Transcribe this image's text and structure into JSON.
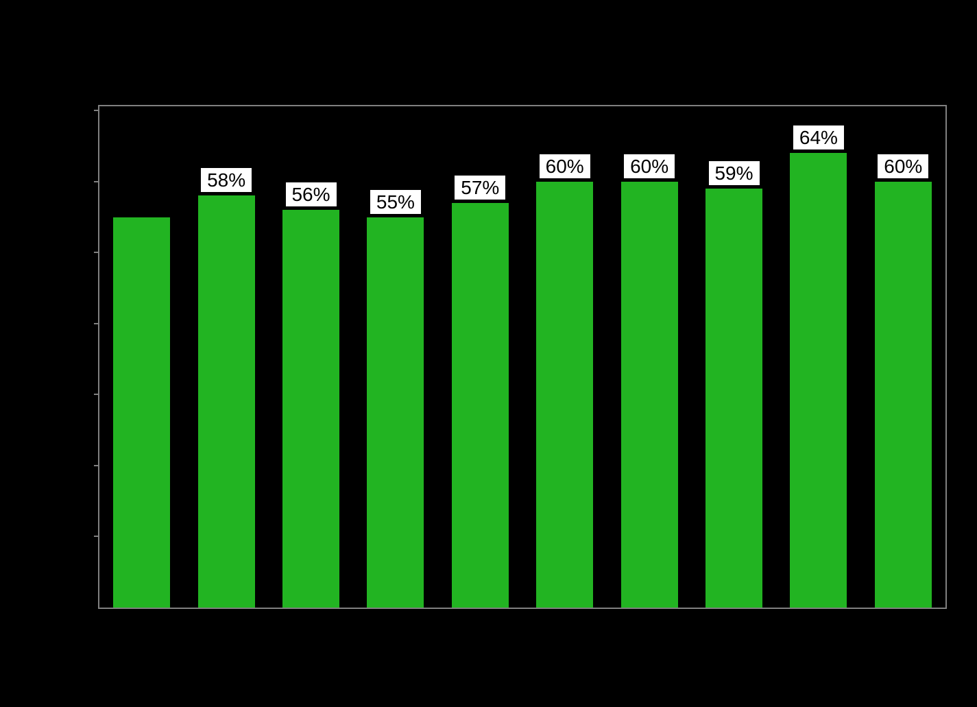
{
  "chart_data": {
    "type": "bar",
    "title": "",
    "xlabel": "",
    "ylabel": "",
    "values": [
      55,
      58,
      56,
      55,
      57,
      60,
      60,
      59,
      64,
      60
    ],
    "bar_labels": [
      "",
      "58%",
      "56%",
      "55%",
      "57%",
      "60%",
      "60%",
      "59%",
      "64%",
      "60%"
    ],
    "ylim": [
      0,
      70.6
    ],
    "ytick_step": 10,
    "ytick_values": [
      10,
      20,
      30,
      40,
      50,
      60,
      70
    ],
    "grid": false,
    "legend": null,
    "colors": {
      "bar_fill": "#22b422",
      "axis_line": "#808080",
      "label_background": "#ffffff",
      "label_text": "#000000",
      "page_background": "#000000"
    }
  }
}
